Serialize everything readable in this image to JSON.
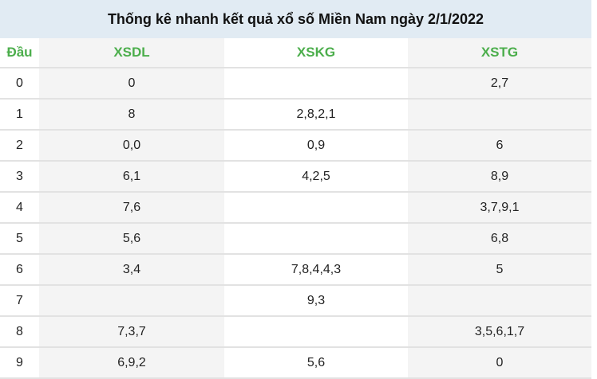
{
  "title": "Thống kê nhanh kết quả xổ số Miền Nam ngày 2/1/2022",
  "headers": [
    "Đầu",
    "XSDL",
    "XSKG",
    "XSTG"
  ],
  "rows": [
    [
      "0",
      "0",
      "",
      "2,7"
    ],
    [
      "1",
      "8",
      "2,8,2,1",
      ""
    ],
    [
      "2",
      "0,0",
      "0,9",
      "6"
    ],
    [
      "3",
      "6,1",
      "4,2,5",
      "8,9"
    ],
    [
      "4",
      "7,6",
      "",
      "3,7,9,1"
    ],
    [
      "5",
      "5,6",
      "",
      "6,8"
    ],
    [
      "6",
      "3,4",
      "7,8,4,4,3",
      "5"
    ],
    [
      "7",
      "",
      "9,3",
      ""
    ],
    [
      "8",
      "7,3,7",
      "",
      "3,5,6,1,7"
    ],
    [
      "9",
      "6,9,2",
      "5,6",
      "0"
    ]
  ],
  "colors": {
    "header_text": "#4cae4c",
    "title_bg": "#e1ebf3",
    "shade": "#f4f4f4"
  }
}
